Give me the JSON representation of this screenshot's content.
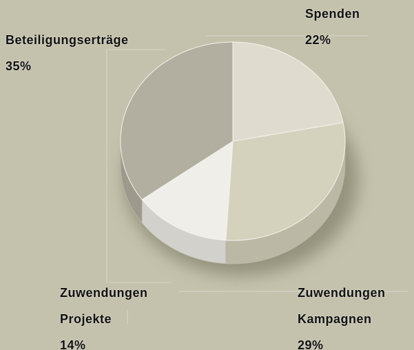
{
  "chart_data": {
    "type": "pie",
    "categories": [
      "Spenden",
      "Zuwendungen Kampagnen",
      "Zuwendungen Projekte",
      "Beteiligungserträge"
    ],
    "values": [
      22,
      29,
      14,
      35
    ],
    "value_labels": [
      "22%",
      "29%",
      "14%",
      "35%"
    ],
    "colors": [
      "#dfdccf",
      "#d4d1bd",
      "#efeee8",
      "#b2afa0"
    ]
  }
}
